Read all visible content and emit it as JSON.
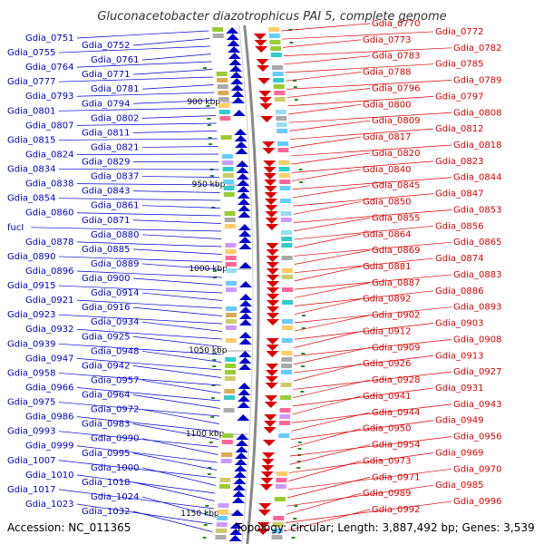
{
  "title": "Gluconacetobacter diazotrophicus PAI 5, complete genome",
  "footer": {
    "accession": "Accession: NC_011365",
    "info": "Topology: circular; Length: 3,887,492 bp; Genes: 3,539"
  },
  "colors": {
    "forward": "#0000cc",
    "reverse": "#dd0000",
    "backbone": "#888888",
    "tick": "#2a8a2a"
  },
  "ticks": [
    "900 kbp",
    "950 kbp",
    "1000 kbp",
    "1050 kbp",
    "1100 kbp",
    "1150 kbp"
  ],
  "left_labels": [
    "Gdia_0751",
    "Gdia_0752",
    "Gdia_0755",
    "Gdia_0761",
    "Gdia_0764",
    "Gdia_0771",
    "Gdia_0777",
    "Gdia_0781",
    "Gdia_0793",
    "Gdia_0794",
    "Gdia_0801",
    "Gdia_0802",
    "Gdia_0807",
    "Gdia_0811",
    "Gdia_0815",
    "Gdia_0821",
    "Gdia_0824",
    "Gdia_0829",
    "Gdia_0834",
    "Gdia_0837",
    "Gdia_0838",
    "Gdia_0843",
    "Gdia_0854",
    "Gdia_0861",
    "Gdia_0860",
    "Gdia_0871",
    "fucI",
    "Gdia_0880",
    "Gdia_0878",
    "Gdia_0885",
    "Gdia_0890",
    "Gdia_0889",
    "Gdia_0896",
    "Gdia_0900",
    "Gdia_0915",
    "Gdia_0914",
    "Gdia_0921",
    "Gdia_0916",
    "Gdia_0923",
    "Gdia_0934",
    "Gdia_0932",
    "Gdia_0925",
    "Gdia_0939",
    "Gdia_0948",
    "Gdia_0947",
    "Gdia_0942",
    "Gdia_0958",
    "Gdia_0957",
    "Gdia_0966",
    "Gdia_0964",
    "Gdia_0975",
    "Gdia_0972",
    "Gdia_0986",
    "Gdia_0983",
    "Gdia_0993",
    "Gdia_0990",
    "Gdia_0999",
    "Gdia_0995",
    "Gdia_1007",
    "Gdia_1000",
    "Gdia_1010",
    "Gdia_1018",
    "Gdia_1017",
    "Gdia_1024",
    "Gdia_1023",
    "Gdia_1032"
  ],
  "right_labels": [
    "Gdia_0770",
    "Gdia_0772",
    "Gdia_0773",
    "Gdia_0782",
    "Gdia_0783",
    "Gdia_0785",
    "Gdia_0788",
    "Gdia_0789",
    "Gdia_0796",
    "Gdia_0797",
    "Gdia_0800",
    "Gdia_0808",
    "Gdia_0809",
    "Gdia_0812",
    "Gdia_0817",
    "Gdia_0818",
    "Gdia_0820",
    "Gdia_0823",
    "Gdia_0840",
    "Gdia_0844",
    "Gdia_0845",
    "Gdia_0847",
    "Gdia_0850",
    "Gdia_0853",
    "Gdia_0855",
    "Gdia_0856",
    "Gdia_0864",
    "Gdia_0865",
    "Gdia_0869",
    "Gdia_0874",
    "Gdia_0881",
    "Gdia_0883",
    "Gdia_0887",
    "Gdia_0886",
    "Gdia_0892",
    "Gdia_0893",
    "Gdia_0902",
    "Gdia_0903",
    "Gdia_0912",
    "Gdia_0908",
    "Gdia_0909",
    "Gdia_0913",
    "Gdia_0926",
    "Gdia_0927",
    "Gdia_0928",
    "Gdia_0931",
    "Gdia_0941",
    "Gdia_0943",
    "Gdia_0944",
    "Gdia_0949",
    "Gdia_0950",
    "Gdia_0956",
    "Gdia_0954",
    "Gdia_0969",
    "Gdia_0973",
    "Gdia_0970",
    "Gdia_0971",
    "Gdia_0985",
    "Gdia_0989",
    "Gdia_0996",
    "Gdia_0992"
  ]
}
